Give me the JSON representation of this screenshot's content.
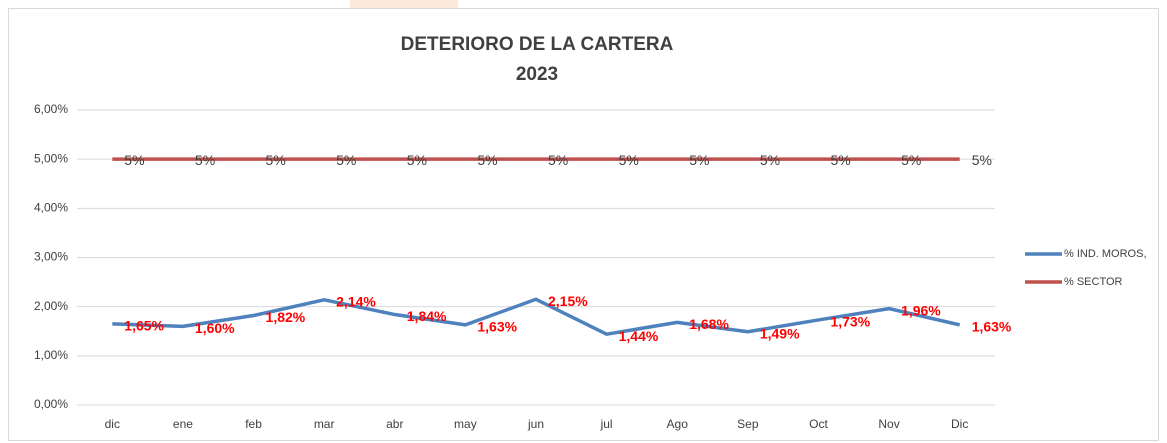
{
  "chart_data": {
    "type": "line",
    "title": "DETERIORO DE LA CARTERA",
    "subtitle": "2023",
    "categories": [
      "dic",
      "ene",
      "feb",
      "mar",
      "abr",
      "may",
      "jun",
      "jul",
      "Ago",
      "Sep",
      "Oct",
      "Nov",
      "Dic"
    ],
    "series": [
      {
        "name": "% IND. MOROS,",
        "color": "#4f81bd",
        "values": [
          1.65,
          1.6,
          1.82,
          2.14,
          1.84,
          1.63,
          2.15,
          1.44,
          1.68,
          1.49,
          1.73,
          1.96,
          1.63
        ],
        "value_labels": [
          "1,65%",
          "1,60%",
          "1,82%",
          "2,14%",
          "1,84%",
          "1,63%",
          "2,15%",
          "1,44%",
          "1,68%",
          "1,49%",
          "1,73%",
          "1,96%",
          "1,63%"
        ]
      },
      {
        "name": "% SECTOR",
        "color": "#c0504d",
        "values": [
          5,
          5,
          5,
          5,
          5,
          5,
          5,
          5,
          5,
          5,
          5,
          5,
          5
        ],
        "value_labels": [
          "5%",
          "5%",
          "5%",
          "5%",
          "5%",
          "5%",
          "5%",
          "5%",
          "5%",
          "5%",
          "5%",
          "5%",
          "5%"
        ]
      }
    ],
    "ylim": [
      0,
      6
    ],
    "yticks": [
      {
        "value": 0,
        "label": "0,00%"
      },
      {
        "value": 1,
        "label": "1,00%"
      },
      {
        "value": 2,
        "label": "2,00%"
      },
      {
        "value": 3,
        "label": "3,00%"
      },
      {
        "value": 4,
        "label": "4,00%"
      },
      {
        "value": 5,
        "label": "5,00%"
      },
      {
        "value": 6,
        "label": "6,00%"
      }
    ],
    "grid": true,
    "legend": "right"
  }
}
